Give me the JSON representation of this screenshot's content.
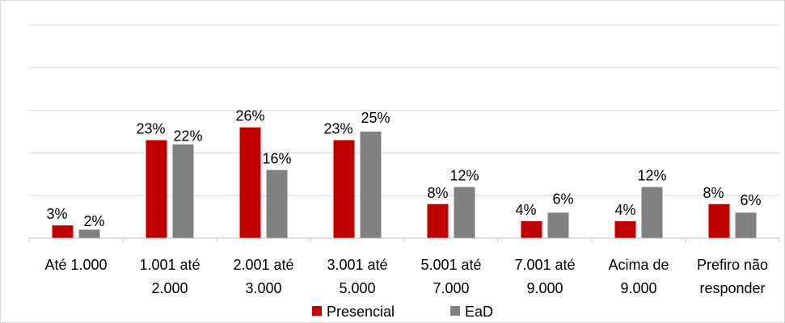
{
  "chart_data": {
    "type": "bar",
    "title": "",
    "xlabel": "",
    "ylabel": "",
    "ylim": [
      0,
      50
    ],
    "grid": true,
    "legend": "bottom",
    "categories": [
      [
        "Até 1.000"
      ],
      [
        "1.001 até",
        "2.000"
      ],
      [
        "2.001 até",
        "3.000"
      ],
      [
        "3.001 até",
        "5.000"
      ],
      [
        "5.001 até",
        "7.000"
      ],
      [
        "7.001 até",
        "9.000"
      ],
      [
        "Acima de",
        "9.000"
      ],
      [
        "Prefiro não",
        "responder"
      ]
    ],
    "series": [
      {
        "name": "Presencial",
        "color": "#c00000",
        "values": [
          3,
          23,
          26,
          23,
          8,
          4,
          4,
          8
        ],
        "labels": [
          "3%",
          "23%",
          "26%",
          "23%",
          "8%",
          "4%",
          "4%",
          "8%"
        ]
      },
      {
        "name": "EaD",
        "color": "#808080",
        "values": [
          2,
          22,
          16,
          25,
          12,
          6,
          12,
          6
        ],
        "labels": [
          "2%",
          "22%",
          "16%",
          "25%",
          "12%",
          "6%",
          "12%",
          "6%"
        ]
      }
    ]
  }
}
